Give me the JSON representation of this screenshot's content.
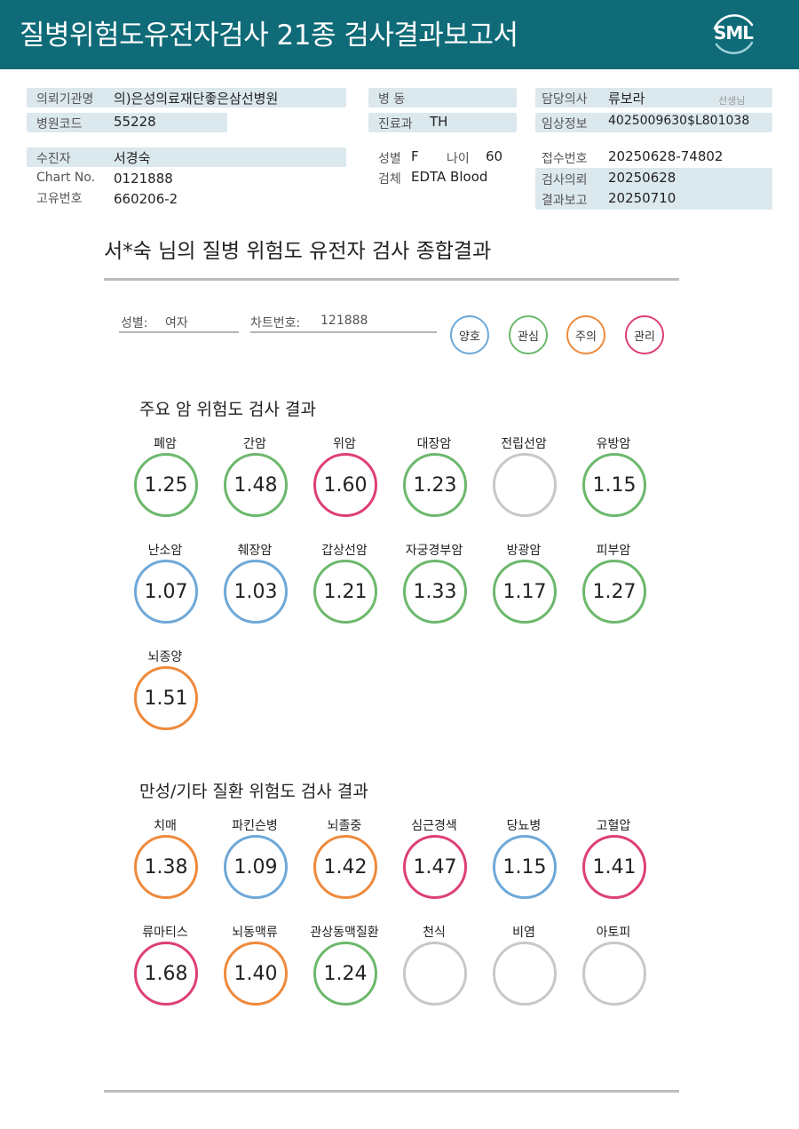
{
  "header": {
    "title": "질병위험도유전자검사 21종 검사결과보고서",
    "logo_text": "SML"
  },
  "info": {
    "institution_label": "의뢰기관명",
    "institution_value": "의)은성의료재단좋은삼선병원",
    "hospital_code_label": "병원코드",
    "hospital_code_value": "55228",
    "ward_label": "병   동",
    "ward_value": "",
    "dept_label": "진료과",
    "dept_value": "TH",
    "doctor_label": "담당의사",
    "doctor_value": "류보라",
    "doctor_suffix": "선생님",
    "clinical_label": "임상정보",
    "clinical_value": "4025009630$L801038",
    "patient_label": "수진자",
    "patient_value": "서경숙",
    "chart_no_label": "Chart No.",
    "chart_no_value": "0121888",
    "unique_no_label": "고유번호",
    "unique_no_value": "660206-2",
    "sex_label": "성별",
    "sex_value": "F",
    "age_label": "나이",
    "age_value": "60",
    "specimen_label": "검체",
    "specimen_value": "EDTA Blood",
    "receipt_label": "접수번호",
    "receipt_value": "20250628-74802",
    "request_label": "검사의뢰",
    "request_value": "20250628",
    "report_label": "결과보고",
    "report_value": "20250710"
  },
  "summary": {
    "title": "서*숙 님의 질병 위험도 유전자 검사 종합결과",
    "sex_label": "성별:",
    "sex_value": "여자",
    "chart_label": "차트번호:",
    "chart_value": "121888"
  },
  "legend": [
    {
      "label": "양호",
      "color": "#6ea8d8"
    },
    {
      "label": "관심",
      "color": "#6cb86c"
    },
    {
      "label": "주의",
      "color": "#ee8a3c"
    },
    {
      "label": "관리",
      "color": "#de3f76"
    }
  ],
  "cancer_section": {
    "title": "주요 암 위험도 검사 결과",
    "items": [
      {
        "label": "폐암",
        "value": "1.25",
        "color": "#6cb86c"
      },
      {
        "label": "간암",
        "value": "1.48",
        "color": "#6cb86c"
      },
      {
        "label": "위암",
        "value": "1.60",
        "color": "#de3f76"
      },
      {
        "label": "대장암",
        "value": "1.23",
        "color": "#6cb86c"
      },
      {
        "label": "전립선암",
        "value": "",
        "color": "#c8c8c8"
      },
      {
        "label": "유방암",
        "value": "1.15",
        "color": "#6cb86c"
      },
      {
        "label": "난소암",
        "value": "1.07",
        "color": "#6ea8d8"
      },
      {
        "label": "췌장암",
        "value": "1.03",
        "color": "#6ea8d8"
      },
      {
        "label": "갑상선암",
        "value": "1.21",
        "color": "#6cb86c"
      },
      {
        "label": "자궁경부암",
        "value": "1.33",
        "color": "#6cb86c"
      },
      {
        "label": "방광암",
        "value": "1.17",
        "color": "#6cb86c"
      },
      {
        "label": "피부암",
        "value": "1.27",
        "color": "#6cb86c"
      },
      {
        "label": "뇌종양",
        "value": "1.51",
        "color": "#ee8a3c"
      }
    ]
  },
  "chronic_section": {
    "title": "만성/기타 질환 위험도 검사 결과",
    "items": [
      {
        "label": "치매",
        "value": "1.38",
        "color": "#ee8a3c"
      },
      {
        "label": "파킨슨병",
        "value": "1.09",
        "color": "#6ea8d8"
      },
      {
        "label": "뇌졸중",
        "value": "1.42",
        "color": "#ee8a3c"
      },
      {
        "label": "심근경색",
        "value": "1.47",
        "color": "#de3f76"
      },
      {
        "label": "당뇨병",
        "value": "1.15",
        "color": "#6ea8d8"
      },
      {
        "label": "고혈압",
        "value": "1.41",
        "color": "#de3f76"
      },
      {
        "label": "류마티스",
        "value": "1.68",
        "color": "#de3f76"
      },
      {
        "label": "뇌동맥류",
        "value": "1.40",
        "color": "#ee8a3c"
      },
      {
        "label": "관상동맥질환",
        "value": "1.24",
        "color": "#6cb86c"
      },
      {
        "label": "천식",
        "value": "",
        "color": "#c8c8c8"
      },
      {
        "label": "비염",
        "value": "",
        "color": "#c8c8c8"
      },
      {
        "label": "아토피",
        "value": "",
        "color": "#c8c8c8"
      }
    ]
  }
}
